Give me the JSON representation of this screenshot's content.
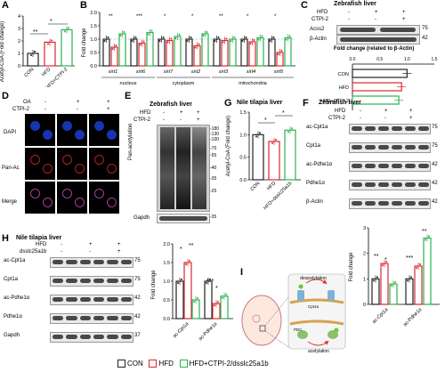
{
  "panels": {
    "A": {
      "letter": "A",
      "ylabel": "Acetyl-CoA (Fold change)",
      "yticks": [
        "0",
        "1",
        "2",
        "3",
        "4"
      ],
      "categories": [
        "CON",
        "HFD",
        "HFD+CTPI-2"
      ],
      "sig": [
        "**",
        "*"
      ]
    },
    "B": {
      "letter": "B",
      "ylabel": "Fold change",
      "yticks": [
        "0.0",
        "0.5",
        "1.0",
        "1.5",
        "2.0"
      ],
      "genes": [
        "sirt1",
        "sirt6",
        "sirt7",
        "sirt2",
        "sirt3",
        "sirt4",
        "sirt5"
      ],
      "groups": [
        "nucleus",
        "cytoplasm",
        "mitochondria"
      ],
      "sig": [
        "**",
        "***",
        "*",
        "*",
        "**",
        "*",
        "*"
      ]
    },
    "C": {
      "letter": "C",
      "title": "Zebrafish liver",
      "conds": [
        "HFD",
        "CTPI-2"
      ],
      "signs": [
        [
          "-",
          "+",
          "+"
        ],
        [
          "-",
          "-",
          "+"
        ]
      ],
      "bands": [
        "Acss2",
        "β-Actin"
      ],
      "kda": [
        "75",
        "42"
      ],
      "subtitle": "Fold change (related to β-Actin)",
      "xticks": [
        "0.0",
        "0.5",
        "1.0",
        "1.5"
      ],
      "categories": [
        "CON",
        "HFD",
        "HFD+CTPI-2"
      ]
    },
    "D": {
      "letter": "D",
      "conds": [
        "OA",
        "CTPI-2"
      ],
      "signs": [
        [
          "-",
          "+",
          "+"
        ],
        [
          "-",
          "-",
          "+"
        ]
      ],
      "rows": [
        "DAPI",
        "Pan-Ac",
        "Merge"
      ]
    },
    "E": {
      "letter": "E",
      "title": "Zebrafish liver",
      "conds": [
        "HFD",
        "CTPI-2"
      ],
      "signs": [
        [
          "-",
          "+",
          "+"
        ],
        [
          "-",
          "-",
          "+"
        ]
      ],
      "bands": [
        "Pan-acetylation",
        "Gapdh"
      ],
      "kda": [
        "180",
        "130",
        "100",
        "70",
        "55",
        "40",
        "35",
        "25",
        "35"
      ]
    },
    "G": {
      "letter": "G",
      "title": "Nile tilapia liver",
      "ylabel": "Acetyl-CoA (Fold change)",
      "yticks": [
        "0.0",
        "0.5",
        "1.0",
        "1.5"
      ],
      "categories": [
        "CON",
        "HFD",
        "HFD+dsslc25a1b"
      ],
      "sig": [
        "*",
        "*"
      ]
    },
    "F": {
      "letter": "F",
      "title": "Zebrafish liver",
      "conds": [
        "HFD",
        "CTPI-2"
      ],
      "signs": [
        [
          "-",
          "+",
          "+"
        ],
        [
          "-",
          "-",
          "+"
        ]
      ],
      "bands": [
        "ac-Cpt1a",
        "Cpt1a",
        "ac-Pdhe1α",
        "Pdhe1α",
        "β-Actin"
      ],
      "kda": [
        "75",
        "75",
        "42",
        "42",
        "42"
      ],
      "ylabel": "Fold change",
      "yticks": [
        "0",
        "1",
        "2",
        "3"
      ],
      "categories": [
        "ac-Cpt1a",
        "ac-Pdhe1α"
      ],
      "sig": [
        "**",
        "*",
        "***",
        "**"
      ]
    },
    "H": {
      "letter": "H",
      "title": "Nile tilapia liver",
      "conds": [
        "HFD",
        "dsslc25a1b"
      ],
      "signs": [
        [
          "-",
          "+",
          "+"
        ],
        [
          "-",
          "-",
          "+"
        ]
      ],
      "bands": [
        "ac-Cpt1a",
        "Cpt1a",
        "ac-Pdhe1α",
        "Pdhe1α",
        "Gapdh"
      ],
      "kda": [
        "75",
        "75",
        "42",
        "42",
        "37"
      ],
      "ylabel": "Fold change",
      "yticks": [
        "0.0",
        "0.5",
        "1.0",
        "1.5",
        "2.0"
      ],
      "categories": [
        "ac-Cpt1a",
        "ac-Pdhe1α"
      ],
      "sig": [
        "*",
        "**",
        "***",
        "*"
      ]
    },
    "I": {
      "letter": "I",
      "deacetylation": "deacetylation",
      "acetylation": "acetylation",
      "cpt": "Cpt1a",
      "pdc": "PDC"
    }
  },
  "legend": {
    "items": [
      "CON",
      "HFD",
      "HFD+CTPI-2/dsslc25a1b"
    ]
  },
  "colors": {
    "con": "#222222",
    "hfd": "#d9282f",
    "trt": "#2bb24c"
  },
  "chart_data": [
    {
      "type": "bar",
      "panel": "A",
      "categories": [
        "CON",
        "HFD",
        "HFD+CTPI-2"
      ],
      "values": [
        1.0,
        1.9,
        2.9
      ],
      "ylim": [
        0,
        4
      ]
    },
    {
      "type": "bar",
      "panel": "B",
      "categories": [
        "sirt1",
        "sirt6",
        "sirt7",
        "sirt2",
        "sirt3",
        "sirt4",
        "sirt5"
      ],
      "series": [
        {
          "name": "CON",
          "values": [
            1.0,
            1.0,
            1.0,
            1.0,
            1.0,
            1.0,
            1.0
          ]
        },
        {
          "name": "HFD",
          "values": [
            0.7,
            0.85,
            0.95,
            0.75,
            0.95,
            0.9,
            0.5
          ]
        },
        {
          "name": "HFD+CTPI-2",
          "values": [
            1.2,
            1.25,
            1.1,
            1.2,
            1.0,
            1.05,
            1.05
          ]
        }
      ],
      "ylim": [
        0,
        2.0
      ]
    },
    {
      "type": "bar",
      "panel": "C",
      "orientation": "horizontal",
      "categories": [
        "CON",
        "HFD",
        "HFD+CTPI-2"
      ],
      "values": [
        1.0,
        0.9,
        0.85
      ],
      "xlim": [
        0,
        1.5
      ]
    },
    {
      "type": "bar",
      "panel": "G",
      "categories": [
        "CON",
        "HFD",
        "HFD+dsslc25a1b"
      ],
      "values": [
        1.0,
        0.85,
        1.1
      ],
      "ylim": [
        0,
        1.5
      ]
    },
    {
      "type": "bar",
      "panel": "F",
      "categories": [
        "ac-Cpt1a",
        "ac-Pdhe1α"
      ],
      "series": [
        {
          "name": "CON",
          "values": [
            1.0,
            1.0
          ]
        },
        {
          "name": "HFD",
          "values": [
            1.6,
            1.5
          ]
        },
        {
          "name": "HFD+CTPI-2",
          "values": [
            0.8,
            2.6
          ]
        }
      ],
      "ylim": [
        0,
        3
      ]
    },
    {
      "type": "bar",
      "panel": "H",
      "categories": [
        "ac-Cpt1a",
        "ac-Pdhe1α"
      ],
      "series": [
        {
          "name": "CON",
          "values": [
            1.0,
            1.0
          ]
        },
        {
          "name": "HFD",
          "values": [
            1.5,
            0.4
          ]
        },
        {
          "name": "HFD+dsslc25a1b",
          "values": [
            0.5,
            0.6
          ]
        }
      ],
      "ylim": [
        0,
        2.0
      ]
    }
  ]
}
